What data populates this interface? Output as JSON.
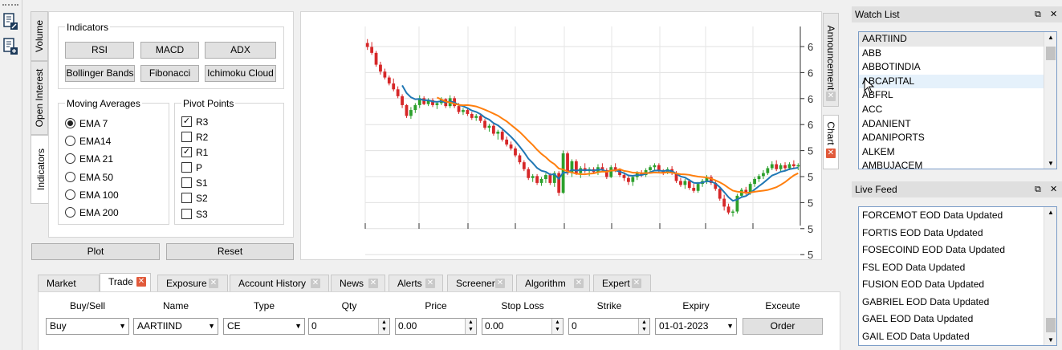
{
  "toolbar": {
    "icons": [
      "document-edit-icon",
      "document-add-icon"
    ]
  },
  "left_vtabs": [
    {
      "label": "Volume"
    },
    {
      "label": "Open Interest"
    },
    {
      "label": "Indicators"
    }
  ],
  "indicators": {
    "title": "Indicators",
    "buttons": [
      "RSI",
      "MACD",
      "ADX",
      "Bollinger Bands",
      "Fibonacci",
      "Ichimoku Cloud"
    ]
  },
  "moving_averages": {
    "title": "Moving Averages",
    "items": [
      "EMA 7",
      "EMA14",
      "EMA 21",
      "EMA 50",
      "EMA 100",
      "EMA 200"
    ],
    "selected": "EMA 7"
  },
  "pivot_points": {
    "title": "Pivot Points",
    "items": [
      "R3",
      "R2",
      "R1",
      "P",
      "S1",
      "S2",
      "S3"
    ],
    "checked": [
      "R3",
      "R1"
    ]
  },
  "actions": {
    "plot_label": "Plot",
    "reset_label": "Reset"
  },
  "right_vtabs": [
    {
      "label": "Announcement"
    },
    {
      "label": "Chart"
    }
  ],
  "bottom_tabs": [
    "Market",
    "Trade",
    "Exposure",
    "Account History",
    "News",
    "Alerts",
    "Screener",
    "Algorithm",
    "Expert"
  ],
  "active_bottom_tab": "Trade",
  "trade_form": {
    "headers": [
      "Buy/Sell",
      "Name",
      "Type",
      "Qty",
      "Price",
      "Stop Loss",
      "Strike",
      "Expiry",
      "Exceute"
    ],
    "buy_sell": "Buy",
    "name": "AARTIIND",
    "type": "CE",
    "qty": "0",
    "price": "0.00",
    "stop_loss": "0.00",
    "strike": "0",
    "expiry": "01-01-2023",
    "order_label": "Order"
  },
  "watch_list": {
    "title": "Watch List",
    "items": [
      "AARTIIND",
      "ABB",
      "ABBOTINDIA",
      "ABCAPITAL",
      "ABFRL",
      "ACC",
      "ADANIENT",
      "ADANIPORTS",
      "ALKEM",
      "AMBUJACEM"
    ],
    "selected": "AARTIIND",
    "hover": "ABCAPITAL"
  },
  "live_feed": {
    "title": "Live Feed",
    "items": [
      "FORCEMOT EOD Data Updated",
      "FORTIS EOD Data Updated",
      "FOSECOIND EOD Data Updated",
      "FSL EOD Data Updated",
      "FUSION EOD Data Updated",
      "GABRIEL EOD Data Updated",
      "GAEL EOD Data Updated",
      "GAIL EOD Data Updated"
    ]
  },
  "colors": {
    "up": "#2ca02c",
    "down": "#d62728",
    "ma_fast": "#1f77b4",
    "ma_slow": "#ff7f0e",
    "close_red": "#e15a3b"
  },
  "chart_data": {
    "type": "candlestick",
    "y_tick_labels": [
      "6",
      "6",
      "6",
      "6",
      "5",
      "5",
      "5",
      "5",
      "5"
    ],
    "candles": [
      [
        64.2,
        64.6,
        63.5,
        63.8
      ],
      [
        63.8,
        64.3,
        63.0,
        63.2
      ],
      [
        63.2,
        63.4,
        61.8,
        62.0
      ],
      [
        62.0,
        62.3,
        61.0,
        61.3
      ],
      [
        61.3,
        61.6,
        60.5,
        60.7
      ],
      [
        60.7,
        60.9,
        59.9,
        60.1
      ],
      [
        60.1,
        60.6,
        59.3,
        59.5
      ],
      [
        59.5,
        59.8,
        58.6,
        58.8
      ],
      [
        58.8,
        59.0,
        57.6,
        57.9
      ],
      [
        57.9,
        58.0,
        56.6,
        56.8
      ],
      [
        56.8,
        57.7,
        56.5,
        57.4
      ],
      [
        57.4,
        58.1,
        57.1,
        57.9
      ],
      [
        57.9,
        58.9,
        57.6,
        58.6
      ],
      [
        58.6,
        58.8,
        57.9,
        58.0
      ],
      [
        58.0,
        58.6,
        57.8,
        58.4
      ],
      [
        58.4,
        58.6,
        57.7,
        57.9
      ],
      [
        57.9,
        58.3,
        57.5,
        58.1
      ],
      [
        58.1,
        58.7,
        57.9,
        58.5
      ],
      [
        58.5,
        58.6,
        57.6,
        57.8
      ],
      [
        57.8,
        58.9,
        57.6,
        58.6
      ],
      [
        58.6,
        58.8,
        57.6,
        57.8
      ],
      [
        57.8,
        58.1,
        57.0,
        57.2
      ],
      [
        57.2,
        57.6,
        56.9,
        57.4
      ],
      [
        57.4,
        57.6,
        56.8,
        57.0
      ],
      [
        57.0,
        57.2,
        56.4,
        56.6
      ],
      [
        56.6,
        57.0,
        56.3,
        56.8
      ],
      [
        56.8,
        57.0,
        56.1,
        56.3
      ],
      [
        56.3,
        56.5,
        55.4,
        55.6
      ],
      [
        55.6,
        56.0,
        55.2,
        55.8
      ],
      [
        55.8,
        56.0,
        54.8,
        55.0
      ],
      [
        55.0,
        55.4,
        54.4,
        55.2
      ],
      [
        55.2,
        55.4,
        54.2,
        54.4
      ],
      [
        54.4,
        54.7,
        53.7,
        53.9
      ],
      [
        53.9,
        54.2,
        53.3,
        53.5
      ],
      [
        53.5,
        53.7,
        52.6,
        52.8
      ],
      [
        52.8,
        53.0,
        51.9,
        52.1
      ],
      [
        52.1,
        52.3,
        51.2,
        51.4
      ],
      [
        51.4,
        51.6,
        50.3,
        50.5
      ],
      [
        50.5,
        50.9,
        50.1,
        50.7
      ],
      [
        50.7,
        50.9,
        49.8,
        50.0
      ],
      [
        50.0,
        50.6,
        49.7,
        50.4
      ],
      [
        50.4,
        51.0,
        50.0,
        50.8
      ],
      [
        50.8,
        51.0,
        49.8,
        50.0
      ],
      [
        50.0,
        51.2,
        49.6,
        51.0
      ],
      [
        51.0,
        51.2,
        48.7,
        49.0
      ],
      [
        49.0,
        53.3,
        48.9,
        53.0
      ],
      [
        53.0,
        53.2,
        50.8,
        51.0
      ],
      [
        51.0,
        52.4,
        50.6,
        52.2
      ],
      [
        52.2,
        52.4,
        50.8,
        51.0
      ],
      [
        51.0,
        51.7,
        50.5,
        51.5
      ],
      [
        51.5,
        52.0,
        51.0,
        51.2
      ],
      [
        51.2,
        51.6,
        50.7,
        51.4
      ],
      [
        51.4,
        51.6,
        50.9,
        51.1
      ],
      [
        51.1,
        51.9,
        50.8,
        51.6
      ],
      [
        51.6,
        52.0,
        51.1,
        51.3
      ],
      [
        51.3,
        51.5,
        50.4,
        50.6
      ],
      [
        50.6,
        51.8,
        50.5,
        51.6
      ],
      [
        51.6,
        52.0,
        51.1,
        51.3
      ],
      [
        51.3,
        51.5,
        50.6,
        50.8
      ],
      [
        50.8,
        51.1,
        50.2,
        50.5
      ],
      [
        50.5,
        50.8,
        49.8,
        50.1
      ],
      [
        50.1,
        50.8,
        49.7,
        50.6
      ],
      [
        50.6,
        51.2,
        50.3,
        51.0
      ],
      [
        51.0,
        51.3,
        50.6,
        50.8
      ],
      [
        50.8,
        51.5,
        50.6,
        51.3
      ],
      [
        51.3,
        51.8,
        51.0,
        51.6
      ],
      [
        51.6,
        52.0,
        51.3,
        51.8
      ],
      [
        51.8,
        52.0,
        51.0,
        51.2
      ],
      [
        51.2,
        51.4,
        50.8,
        51.1
      ],
      [
        51.1,
        51.6,
        50.9,
        51.4
      ],
      [
        51.4,
        51.7,
        50.8,
        51.0
      ],
      [
        51.0,
        51.2,
        50.0,
        50.2
      ],
      [
        50.2,
        50.5,
        49.6,
        49.8
      ],
      [
        49.8,
        50.4,
        49.4,
        50.2
      ],
      [
        50.2,
        50.4,
        49.3,
        49.5
      ],
      [
        49.5,
        49.9,
        49.0,
        49.2
      ],
      [
        49.2,
        50.1,
        49.0,
        49.9
      ],
      [
        49.9,
        50.4,
        49.6,
        50.2
      ],
      [
        50.2,
        50.8,
        49.9,
        50.6
      ],
      [
        50.6,
        50.8,
        49.8,
        50.0
      ],
      [
        50.0,
        50.3,
        49.2,
        49.4
      ],
      [
        49.4,
        49.6,
        48.2,
        48.4
      ],
      [
        48.4,
        48.8,
        47.2,
        47.6
      ],
      [
        47.6,
        47.9,
        46.8,
        47.0
      ],
      [
        47.0,
        47.3,
        46.6,
        47.1
      ],
      [
        47.1,
        48.9,
        46.9,
        48.7
      ],
      [
        48.7,
        49.5,
        48.5,
        49.3
      ],
      [
        49.3,
        49.6,
        48.8,
        49.0
      ],
      [
        49.0,
        50.1,
        48.8,
        49.9
      ],
      [
        49.9,
        50.6,
        49.6,
        50.4
      ],
      [
        50.4,
        50.9,
        50.1,
        50.7
      ],
      [
        50.7,
        51.3,
        50.4,
        51.0
      ],
      [
        51.0,
        51.7,
        50.8,
        51.5
      ],
      [
        51.5,
        52.2,
        51.3,
        51.9
      ],
      [
        51.9,
        52.3,
        51.2,
        51.4
      ],
      [
        51.4,
        52.0,
        51.1,
        51.8
      ],
      [
        51.8,
        52.1,
        51.2,
        51.5
      ],
      [
        51.5,
        52.1,
        51.3,
        51.9
      ],
      [
        51.9,
        52.3,
        51.5,
        51.7
      ],
      [
        51.7,
        52.0,
        51.3,
        51.8
      ]
    ]
  }
}
